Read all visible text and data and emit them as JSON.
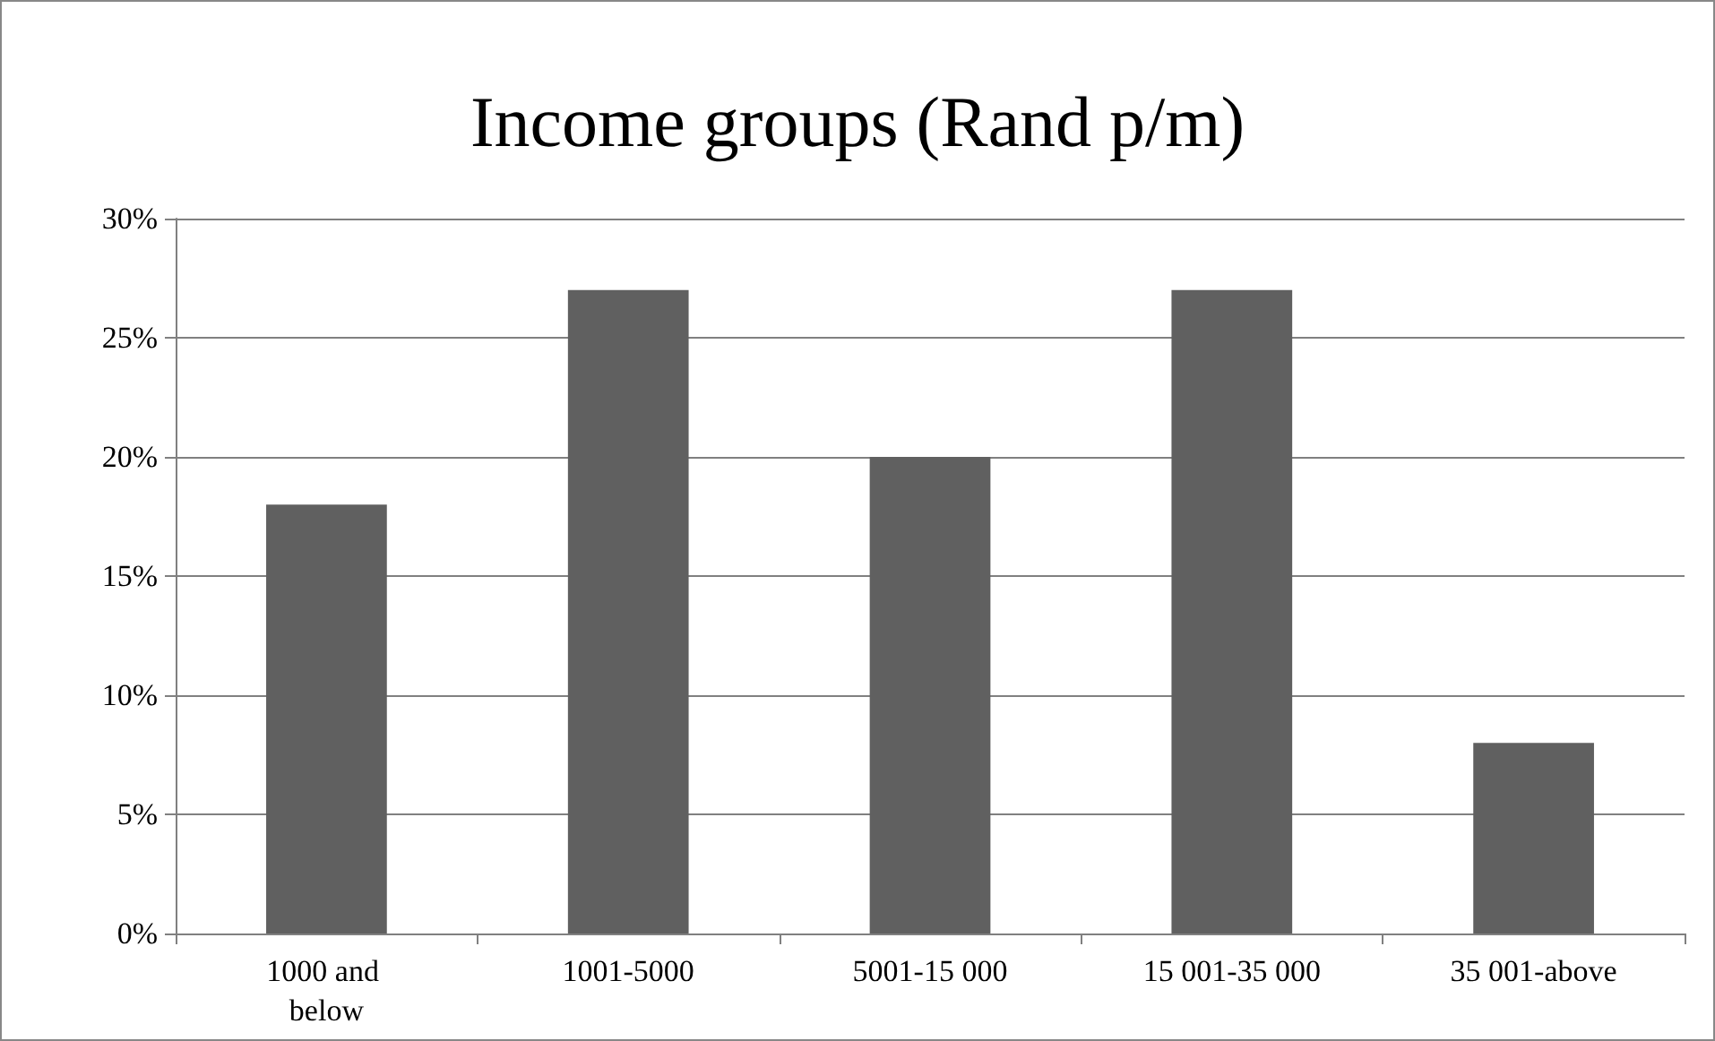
{
  "chart_data": {
    "type": "bar",
    "title": "Income groups (Rand p/m)",
    "categories": [
      "1000 and below",
      "1001-5000",
      "5001-15 000",
      "15 001-35 000",
      "35 001-above"
    ],
    "values": [
      18,
      27,
      20,
      27,
      8
    ],
    "color": "#606060",
    "ylim": [
      0,
      30
    ],
    "yticks": [
      {
        "value": 0,
        "label": "0%"
      },
      {
        "value": 5,
        "label": "5%"
      },
      {
        "value": 10,
        "label": "10%"
      },
      {
        "value": 15,
        "label": "15%"
      },
      {
        "value": 20,
        "label": "20%"
      },
      {
        "value": 25,
        "label": "25%"
      },
      {
        "value": 30,
        "label": "30%"
      }
    ],
    "grid": "y"
  }
}
